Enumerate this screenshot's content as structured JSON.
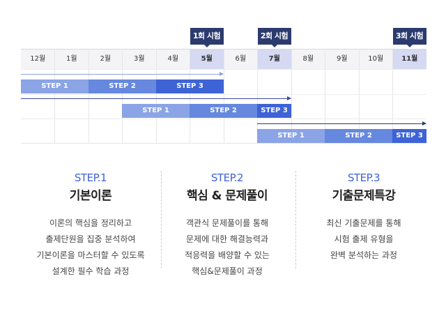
{
  "exams": [
    "1회 시험",
    "2회 시험",
    "3회 시험"
  ],
  "months": [
    "12월",
    "1월",
    "2월",
    "3월",
    "4월",
    "5월",
    "6월",
    "7월",
    "8월",
    "9월",
    "10월",
    "11월"
  ],
  "rows": [
    {
      "bars": [
        "STEP 1",
        "STEP 2",
        "STEP 3"
      ]
    },
    {
      "bars": [
        "STEP 1",
        "STEP 2",
        "STEP 3"
      ]
    },
    {
      "bars": [
        "STEP 1",
        "STEP 2",
        "STEP 3"
      ]
    }
  ],
  "colors": {
    "step1": "#8ba4e6",
    "step2": "#6688de",
    "step3": "#3e63d6",
    "exam": "#2c3b6e",
    "month_highlight": "#d5d9f2"
  },
  "steps": [
    {
      "label": "STEP.1",
      "title": "기본이론",
      "desc": [
        "이론의 핵심을 정리하고",
        "출제단원을 집중 분석하여",
        "기본이론을 마스터할 수 있도록",
        "설계한 필수 학습 과정"
      ]
    },
    {
      "label": "STEP.2",
      "title": "핵심 & 문제풀이",
      "desc": [
        "객관식 문제풀이를 통해",
        "문제에 대한 해결능력과",
        "적응력을 배양할 수 있는",
        "핵심&문제풀이 과정"
      ]
    },
    {
      "label": "STEP.3",
      "title": "기출문제특강",
      "desc": [
        "최신 기출문제를 통해",
        "시험 출제 유형을",
        "완벽 분석하는 과정"
      ]
    }
  ]
}
